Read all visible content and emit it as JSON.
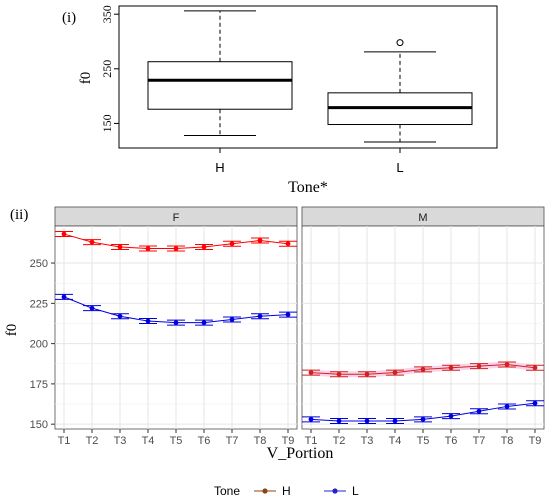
{
  "panel_labels": {
    "top": "(i)",
    "bottom": "(ii)"
  },
  "chart_data": [
    {
      "type": "boxplot",
      "xlabel": "Tone*",
      "ylabel": "f0",
      "ylim": [
        105,
        365
      ],
      "yticks": [
        150,
        250,
        350
      ],
      "categories": [
        "H",
        "L"
      ],
      "boxes": [
        {
          "category": "H",
          "whisker_low": 128,
          "q1": 176,
          "median": 229,
          "q3": 263,
          "whisker_high": 356,
          "outliers": []
        },
        {
          "category": "L",
          "whisker_low": 116,
          "q1": 148,
          "median": 179,
          "q3": 206,
          "whisker_high": 281,
          "outliers": [
            298
          ]
        }
      ],
      "grid": false
    },
    {
      "type": "line",
      "xlabel": "V_Portion",
      "ylabel": "f0",
      "ylim": [
        147,
        273
      ],
      "yticks": [
        150,
        175,
        200,
        225,
        250
      ],
      "x": [
        "T1",
        "T2",
        "T3",
        "T4",
        "T5",
        "T6",
        "T7",
        "T8",
        "T9"
      ],
      "facets": [
        "F",
        "M"
      ],
      "legend": {
        "title": "Tone",
        "position": "bottom",
        "entries": [
          "H",
          "L"
        ]
      },
      "series": [
        {
          "name": "H",
          "facet": "F",
          "color": "#ff0000",
          "values": [
            268,
            263,
            260,
            259,
            259,
            260,
            262,
            264,
            262
          ]
        },
        {
          "name": "L",
          "facet": "F",
          "color": "#0000dd",
          "values": [
            229,
            222,
            217,
            214,
            213,
            213,
            215,
            217,
            218
          ]
        },
        {
          "name": "H",
          "facet": "M",
          "color": "#d42020",
          "values": [
            182,
            181,
            181,
            182,
            184,
            185,
            186,
            187,
            185
          ]
        },
        {
          "name": "L",
          "facet": "M",
          "color": "#0000dd",
          "values": [
            153,
            152,
            152,
            152,
            153,
            155,
            158,
            161,
            163
          ]
        }
      ],
      "legend_colors": {
        "H": "#8b4513",
        "L": "#2222cc"
      },
      "grid": true
    }
  ]
}
